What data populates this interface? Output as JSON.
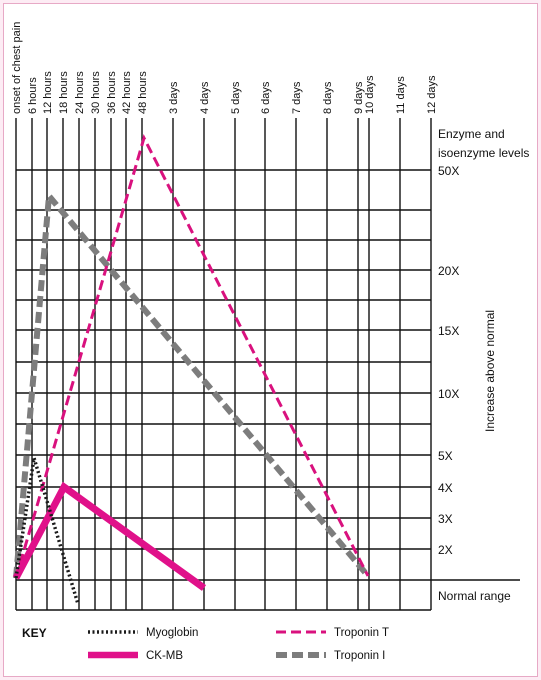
{
  "chart_data": {
    "type": "line",
    "x_labels": [
      "onset of chest pain",
      "6 hours",
      "12 hours",
      "18 hours",
      "24 hours",
      "30 hours",
      "36 hours",
      "42 hours",
      "48 hours",
      "3 days",
      "4 days",
      "5 days",
      "6 days",
      "7 days",
      "8 days",
      "9 days",
      "10 days",
      "11 days",
      "12 days"
    ],
    "y_title": "Increase above normal",
    "y_header": [
      "Enzyme and",
      "isoenzyme levels"
    ],
    "y_labels": [
      "50X",
      "20X",
      "15X",
      "10X",
      "5X",
      "4X",
      "3X",
      "2X",
      "Normal range"
    ],
    "series": [
      {
        "name": "Myoglobin",
        "style": "dotted",
        "color": "#1a1a1a",
        "points": [
          [
            "onset of chest pain",
            "Normal range"
          ],
          [
            "6 hours",
            "5X"
          ],
          [
            "18 hours",
            "below normal"
          ]
        ]
      },
      {
        "name": "CK-MB",
        "style": "solid",
        "color": "#e0118a",
        "points": [
          [
            "onset of chest pain",
            "Normal range"
          ],
          [
            "18 hours",
            "4X"
          ],
          [
            "4 days",
            "below 2X"
          ]
        ]
      },
      {
        "name": "Troponin T",
        "style": "dashed",
        "color": "#d9117e",
        "points": [
          [
            "onset of chest pain",
            "Normal range"
          ],
          [
            "48 hours",
            "above 50X"
          ],
          [
            "10 days",
            "Normal range"
          ]
        ]
      },
      {
        "name": "Troponin I",
        "style": "thick-dashed",
        "color": "#7d7d7d",
        "points": [
          [
            "onset of chest pain",
            "Normal range"
          ],
          [
            "12 hours",
            "below 50X"
          ],
          [
            "10 days",
            "Normal range"
          ]
        ]
      }
    ],
    "key_title": "KEY",
    "legend_order": [
      "Myoglobin",
      "Troponin T",
      "CK-MB",
      "Troponin I"
    ]
  }
}
